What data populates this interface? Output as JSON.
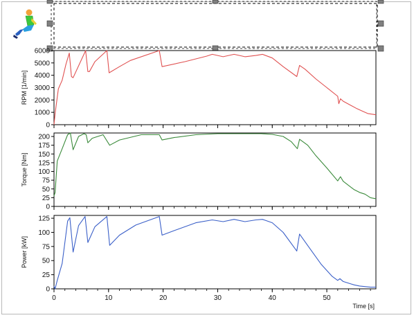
{
  "chart_data": [
    {
      "type": "line",
      "ylabel": "RPM [1/min]",
      "xlim": [
        0,
        59
      ],
      "ylim": [
        0,
        6000
      ],
      "yticks": [
        0,
        1000,
        2000,
        3000,
        4000,
        5000,
        6000
      ],
      "grid": false,
      "color": "#e05050",
      "points": [
        [
          0,
          0
        ],
        [
          0.2,
          900
        ],
        [
          0.8,
          2900
        ],
        [
          1.5,
          3600
        ],
        [
          2.2,
          4900
        ],
        [
          2.8,
          5800
        ],
        [
          3.2,
          3900
        ],
        [
          3.5,
          3800
        ],
        [
          5.8,
          6000
        ],
        [
          6.2,
          4300
        ],
        [
          6.5,
          4300
        ],
        [
          7.5,
          5100
        ],
        [
          9.7,
          6000
        ],
        [
          10.1,
          4200
        ],
        [
          12,
          4700
        ],
        [
          14,
          5200
        ],
        [
          19.3,
          6000
        ],
        [
          19.8,
          4700
        ],
        [
          24,
          5100
        ],
        [
          28,
          5550
        ],
        [
          29,
          5700
        ],
        [
          31,
          5500
        ],
        [
          33,
          5700
        ],
        [
          35,
          5500
        ],
        [
          37,
          5600
        ],
        [
          38.2,
          5700
        ],
        [
          40,
          5400
        ],
        [
          42,
          4700
        ],
        [
          44.5,
          3900
        ],
        [
          45,
          4800
        ],
        [
          46,
          4500
        ],
        [
          48,
          3700
        ],
        [
          50,
          3000
        ],
        [
          52,
          2300
        ],
        [
          52.2,
          1700
        ],
        [
          52.5,
          2100
        ],
        [
          53,
          1900
        ],
        [
          55.5,
          1300
        ],
        [
          56.5,
          1100
        ],
        [
          57.5,
          900
        ],
        [
          59,
          800
        ]
      ]
    },
    {
      "type": "line",
      "ylabel": "Torque [Nm]",
      "xlim": [
        0,
        59
      ],
      "ylim": [
        0,
        210
      ],
      "yticks": [
        0,
        25,
        50,
        75,
        100,
        125,
        150,
        175,
        200
      ],
      "grid": false,
      "color": "#3a8a3a",
      "points": [
        [
          0,
          30
        ],
        [
          0.2,
          40
        ],
        [
          0.6,
          130
        ],
        [
          1.5,
          165
        ],
        [
          2.5,
          205
        ],
        [
          3,
          210
        ],
        [
          3.5,
          162
        ],
        [
          4.5,
          200
        ],
        [
          5.5,
          208
        ],
        [
          5.9,
          205
        ],
        [
          6.2,
          182
        ],
        [
          7,
          195
        ],
        [
          9,
          205
        ],
        [
          10.2,
          175
        ],
        [
          12,
          190
        ],
        [
          16,
          205
        ],
        [
          19.3,
          205
        ],
        [
          19.8,
          190
        ],
        [
          22,
          197
        ],
        [
          26,
          205
        ],
        [
          30,
          208
        ],
        [
          38,
          208
        ],
        [
          40,
          206
        ],
        [
          42,
          200
        ],
        [
          43.5,
          185
        ],
        [
          44.6,
          165
        ],
        [
          45,
          192
        ],
        [
          46.5,
          175
        ],
        [
          48,
          145
        ],
        [
          50,
          110
        ],
        [
          52,
          73
        ],
        [
          52.5,
          85
        ],
        [
          53,
          72
        ],
        [
          55,
          48
        ],
        [
          56,
          40
        ],
        [
          57,
          35
        ],
        [
          58,
          25
        ],
        [
          59,
          22
        ]
      ]
    },
    {
      "type": "line",
      "ylabel": "Power [kW]",
      "xlabel": "Time [s]",
      "xlim": [
        0,
        59
      ],
      "ylim": [
        0,
        130
      ],
      "xticks": [
        0,
        10,
        20,
        30,
        40,
        50
      ],
      "yticks": [
        0,
        25,
        50,
        75,
        100,
        125
      ],
      "grid": false,
      "color": "#3a5fc8",
      "points": [
        [
          0,
          5
        ],
        [
          0.2,
          0
        ],
        [
          0.6,
          15
        ],
        [
          1.5,
          45
        ],
        [
          2.5,
          120
        ],
        [
          2.9,
          126
        ],
        [
          3.5,
          65
        ],
        [
          4.5,
          112
        ],
        [
          5.7,
          128
        ],
        [
          6.2,
          82
        ],
        [
          7.5,
          110
        ],
        [
          9.7,
          128
        ],
        [
          10.2,
          77
        ],
        [
          12,
          95
        ],
        [
          15,
          113
        ],
        [
          19.3,
          128
        ],
        [
          19.8,
          95
        ],
        [
          22,
          103
        ],
        [
          26,
          117
        ],
        [
          29,
          122
        ],
        [
          31,
          119
        ],
        [
          33,
          123
        ],
        [
          35,
          119
        ],
        [
          37,
          122
        ],
        [
          38.2,
          123
        ],
        [
          40,
          117
        ],
        [
          42,
          100
        ],
        [
          44.5,
          67
        ],
        [
          45,
          97
        ],
        [
          47,
          70
        ],
        [
          49,
          43
        ],
        [
          51,
          22
        ],
        [
          52,
          15
        ],
        [
          52.4,
          18
        ],
        [
          53,
          13
        ],
        [
          55,
          7
        ],
        [
          56,
          5
        ],
        [
          58,
          3
        ],
        [
          59,
          3
        ]
      ]
    }
  ],
  "labels": {
    "xlabel": "Time [s]",
    "tick_format_thousands": false
  },
  "colors": {
    "axis": "#000000",
    "frame": "#b8b8b8",
    "selection_handle": "#808080"
  },
  "icons": {
    "driver_figure": "driver-seated-icon"
  }
}
